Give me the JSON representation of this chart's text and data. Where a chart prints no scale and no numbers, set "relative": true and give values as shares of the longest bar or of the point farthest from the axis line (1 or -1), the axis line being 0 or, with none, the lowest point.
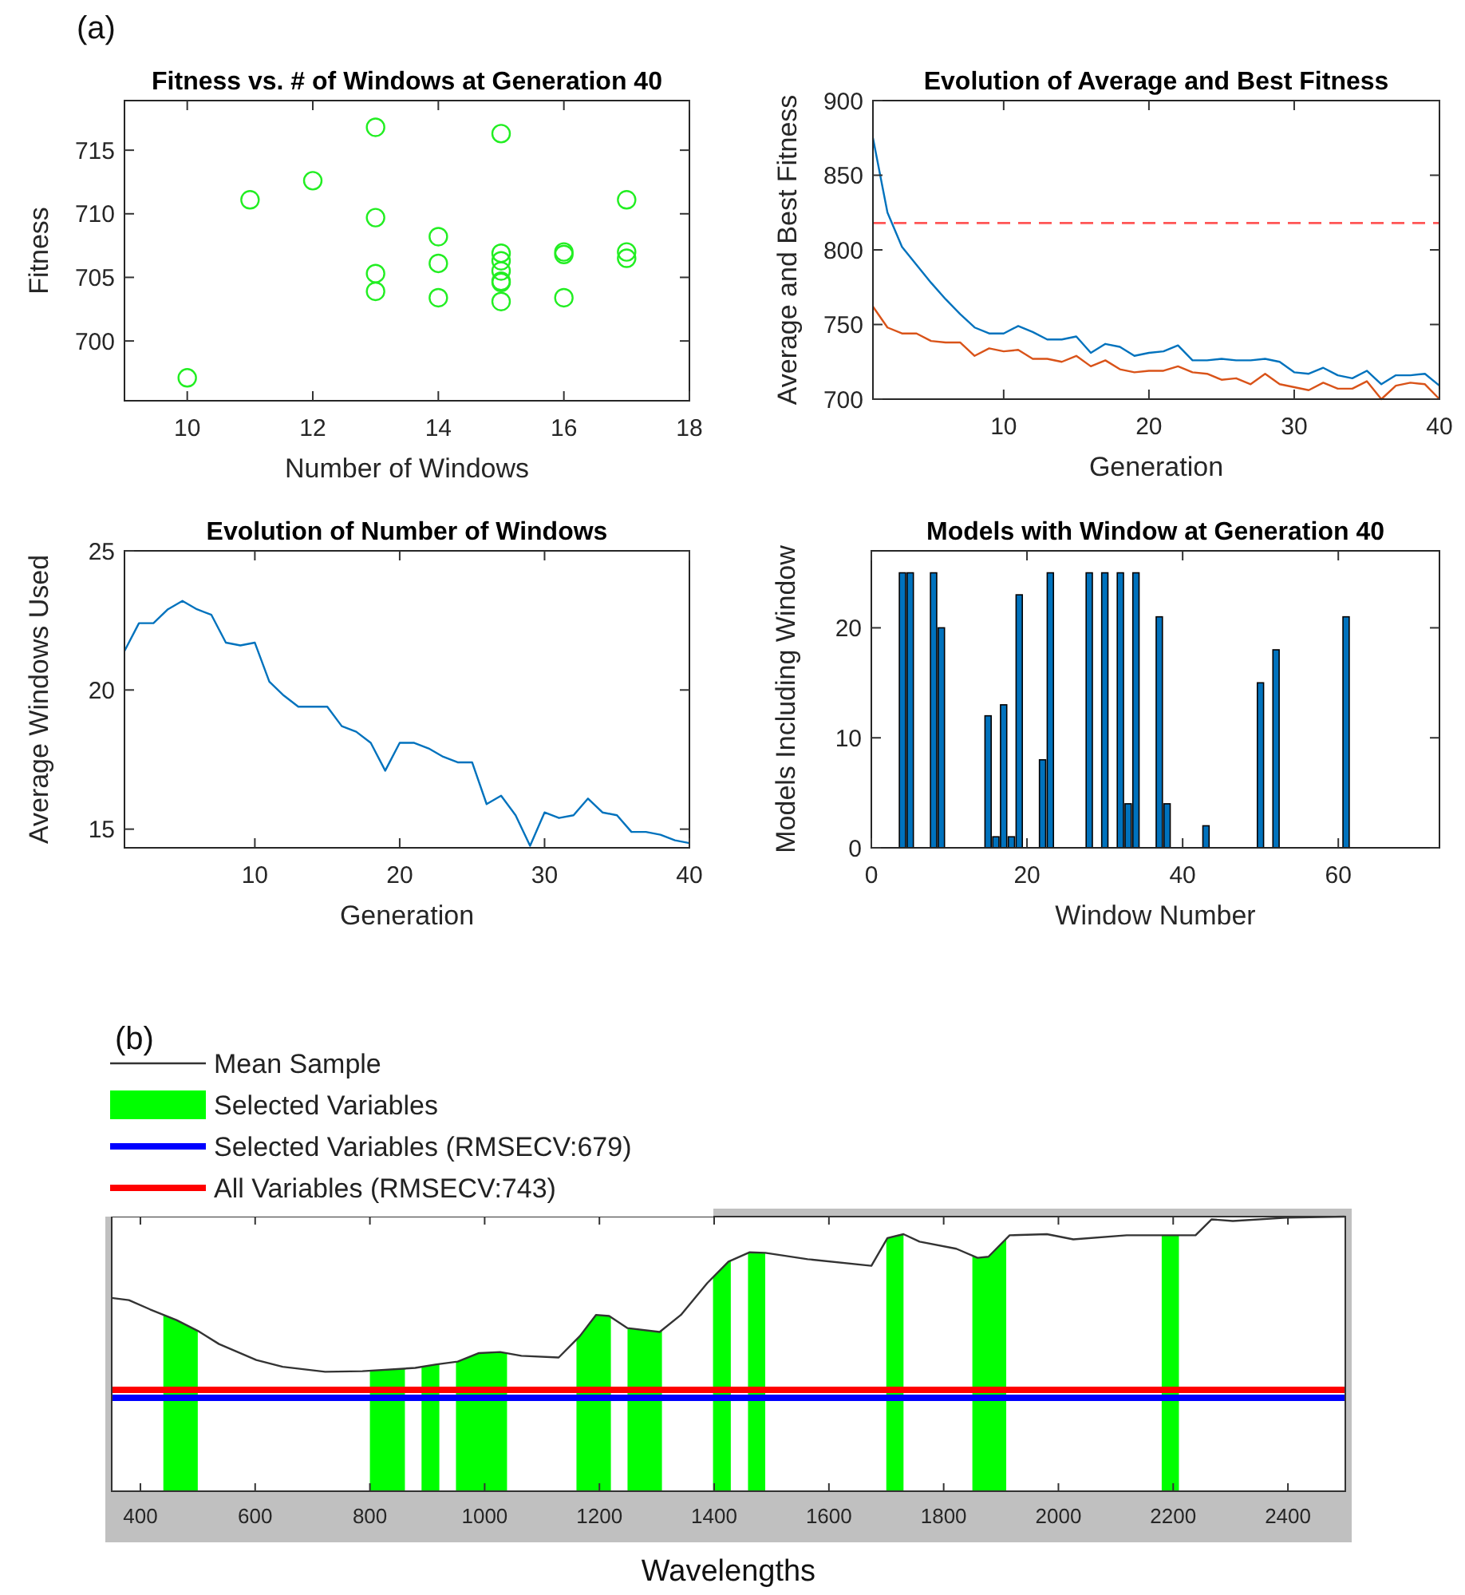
{
  "chart_data": [
    {
      "type": "scatter",
      "title": "Fitness vs. # of Windows at Generation 40",
      "xlabel": "Number of Windows",
      "ylabel": "Fitness",
      "annotations": [
        "(a)"
      ],
      "marker": "circle",
      "color": "#22ee22",
      "x": [
        10,
        11,
        12,
        13,
        13,
        13,
        13,
        14,
        14,
        14,
        15,
        15,
        15,
        15,
        15,
        15,
        15,
        16,
        16,
        16,
        17,
        17,
        17
      ],
      "values": [
        697.1,
        711.1,
        712.6,
        716.8,
        709.7,
        705.3,
        703.9,
        708.2,
        706.1,
        703.4,
        716.3,
        706.9,
        706.3,
        705.5,
        704.7,
        704.6,
        703.1,
        707.0,
        706.8,
        703.4,
        711.1,
        707.0,
        706.5
      ],
      "xlim": [
        9,
        18
      ],
      "xticks": [
        10,
        12,
        14,
        16,
        18
      ],
      "ylim": [
        695.3,
        718.9
      ],
      "yticks": [
        700,
        705,
        710,
        715
      ]
    },
    {
      "type": "line",
      "title": "Evolution of Average and Best Fitness",
      "xlabel": "Generation",
      "ylabel": "Average and Best Fitness",
      "x": [
        1,
        2,
        3,
        4,
        5,
        6,
        7,
        8,
        9,
        10,
        11,
        12,
        13,
        14,
        15,
        16,
        17,
        18,
        19,
        20,
        21,
        22,
        23,
        24,
        25,
        26,
        27,
        28,
        29,
        30,
        31,
        32,
        33,
        34,
        35,
        36,
        37,
        38,
        39,
        40
      ],
      "series": [
        {
          "color": "#0072bd",
          "values": [
            875,
            825,
            802,
            790,
            778,
            767,
            757,
            748,
            744,
            744,
            749,
            745,
            740,
            740,
            742,
            731,
            737,
            735,
            729,
            731,
            732,
            736,
            726,
            726,
            727,
            726,
            726,
            727,
            725,
            718,
            717,
            721,
            716,
            714,
            719,
            710,
            716,
            716,
            717,
            709
          ]
        },
        {
          "color": "#d95319",
          "values": [
            762,
            748,
            744,
            744,
            739,
            738,
            738,
            729,
            734,
            732,
            733,
            727,
            727,
            725,
            729,
            722,
            726,
            720,
            718,
            719,
            719,
            722,
            718,
            717,
            713,
            714,
            710,
            717,
            710,
            708,
            706,
            711,
            707,
            707,
            712,
            700,
            709,
            711,
            710,
            700
          ]
        }
      ],
      "ref_lines": [
        {
          "axis": "y",
          "value": 818,
          "color": "#ff5555",
          "line_style": "dashed"
        }
      ],
      "xlim": [
        1,
        40
      ],
      "xticks": [
        10,
        20,
        30,
        40
      ],
      "ylim": [
        700,
        900
      ],
      "yticks": [
        700,
        750,
        800,
        850,
        900
      ]
    },
    {
      "type": "line",
      "title": "Evolution of Number of Windows",
      "xlabel": "Generation",
      "ylabel": "Average Windows Used",
      "color": "#0072bd",
      "x": [
        1,
        2,
        3,
        4,
        5,
        6,
        7,
        8,
        9,
        10,
        11,
        12,
        13,
        14,
        15,
        16,
        17,
        18,
        19,
        20,
        21,
        22,
        23,
        24,
        25,
        26,
        27,
        28,
        29,
        30,
        31,
        32,
        33,
        34,
        35,
        36,
        37,
        38,
        39,
        40
      ],
      "values": [
        21.4,
        22.4,
        22.4,
        22.9,
        23.2,
        22.9,
        22.7,
        21.7,
        21.6,
        21.7,
        20.3,
        19.8,
        19.4,
        19.4,
        19.4,
        18.7,
        18.5,
        18.1,
        17.1,
        18.1,
        18.1,
        17.9,
        17.6,
        17.4,
        17.4,
        15.9,
        16.2,
        15.5,
        14.4,
        15.6,
        15.4,
        15.5,
        16.1,
        15.6,
        15.5,
        14.9,
        14.9,
        14.8,
        14.6,
        14.5
      ],
      "xlim": [
        1,
        40
      ],
      "xticks": [
        10,
        20,
        30,
        40
      ],
      "ylim": [
        14.33,
        25
      ],
      "yticks": [
        15,
        20,
        25
      ]
    },
    {
      "type": "bar",
      "title": "Models with Window at Generation 40",
      "xlabel": "Window Number",
      "ylabel": "Models Including Window",
      "color": "#0072bd",
      "x": [
        4,
        5,
        8,
        9,
        15,
        16,
        17,
        18,
        19,
        22,
        23,
        28,
        30,
        32,
        33,
        34,
        37,
        38,
        43,
        50,
        52,
        61
      ],
      "values": [
        25,
        25,
        25,
        20,
        12,
        1,
        13,
        1,
        23,
        8,
        25,
        25,
        25,
        25,
        4,
        25,
        21,
        4,
        2,
        15,
        18,
        21
      ],
      "xlim": [
        0,
        73
      ],
      "xticks": [
        0,
        20,
        40,
        60
      ],
      "ylim": [
        0,
        27
      ],
      "yticks": [
        0,
        10,
        20
      ]
    },
    {
      "type": "line",
      "xlabel": "Wavelengths",
      "annotations": [
        "(b)"
      ],
      "relative": true,
      "legend": "top left",
      "series": [
        {
          "name": "Mean Sample",
          "color": "#333333",
          "x": [
            350,
            380,
            417,
            463,
            500,
            537,
            602,
            648,
            722,
            787,
            879,
            916,
            953,
            990,
            1027,
            1064,
            1129,
            1166,
            1194,
            1217,
            1249,
            1305,
            1342,
            1388,
            1425,
            1462,
            1489,
            1563,
            1674,
            1702,
            1730,
            1758,
            1822,
            1859,
            1878,
            1915,
            1980,
            2026,
            2119,
            2239,
            2267,
            2304,
            2397,
            2499
          ],
          "values": [
            0.704,
            0.696,
            0.662,
            0.623,
            0.584,
            0.536,
            0.478,
            0.453,
            0.435,
            0.437,
            0.449,
            0.462,
            0.472,
            0.503,
            0.507,
            0.493,
            0.487,
            0.565,
            0.642,
            0.638,
            0.594,
            0.58,
            0.642,
            0.758,
            0.836,
            0.87,
            0.868,
            0.845,
            0.821,
            0.922,
            0.936,
            0.909,
            0.883,
            0.85,
            0.854,
            0.932,
            0.936,
            0.917,
            0.932,
            0.932,
            0.99,
            0.984,
            0.996,
            1.0
          ]
        },
        {
          "name": "Selected Variables (RMSECV:679)",
          "color": "#0000ff",
          "x": [
            350,
            2500
          ],
          "values": [
            0.34,
            0.34
          ]
        },
        {
          "name": "All Variables (RMSECV:743)",
          "color": "#ff0000",
          "x": [
            350,
            2500
          ],
          "values": [
            0.369,
            0.369
          ]
        }
      ],
      "bands": [
        {
          "axis": "x",
          "from": 440,
          "to": 500,
          "color": "#00ff00",
          "label": "Selected Variables"
        },
        {
          "axis": "x",
          "from": 800,
          "to": 861,
          "color": "#00ff00"
        },
        {
          "axis": "x",
          "from": 890,
          "to": 921,
          "color": "#00ff00"
        },
        {
          "axis": "x",
          "from": 950,
          "to": 1039,
          "color": "#00ff00"
        },
        {
          "axis": "x",
          "from": 1160,
          "to": 1220,
          "color": "#00ff00"
        },
        {
          "axis": "x",
          "from": 1249,
          "to": 1309,
          "color": "#00ff00"
        },
        {
          "axis": "x",
          "from": 1398,
          "to": 1429,
          "color": "#00ff00"
        },
        {
          "axis": "x",
          "from": 1459,
          "to": 1489,
          "color": "#00ff00"
        },
        {
          "axis": "x",
          "from": 1700,
          "to": 1730,
          "color": "#00ff00"
        },
        {
          "axis": "x",
          "from": 1850,
          "to": 1909,
          "color": "#00ff00"
        },
        {
          "axis": "x",
          "from": 2180,
          "to": 2210,
          "color": "#00ff00"
        }
      ],
      "xlim": [
        350,
        2500
      ],
      "xticks": [
        400,
        600,
        800,
        1000,
        1200,
        1400,
        1600,
        1800,
        2000,
        2200,
        2400
      ]
    }
  ]
}
